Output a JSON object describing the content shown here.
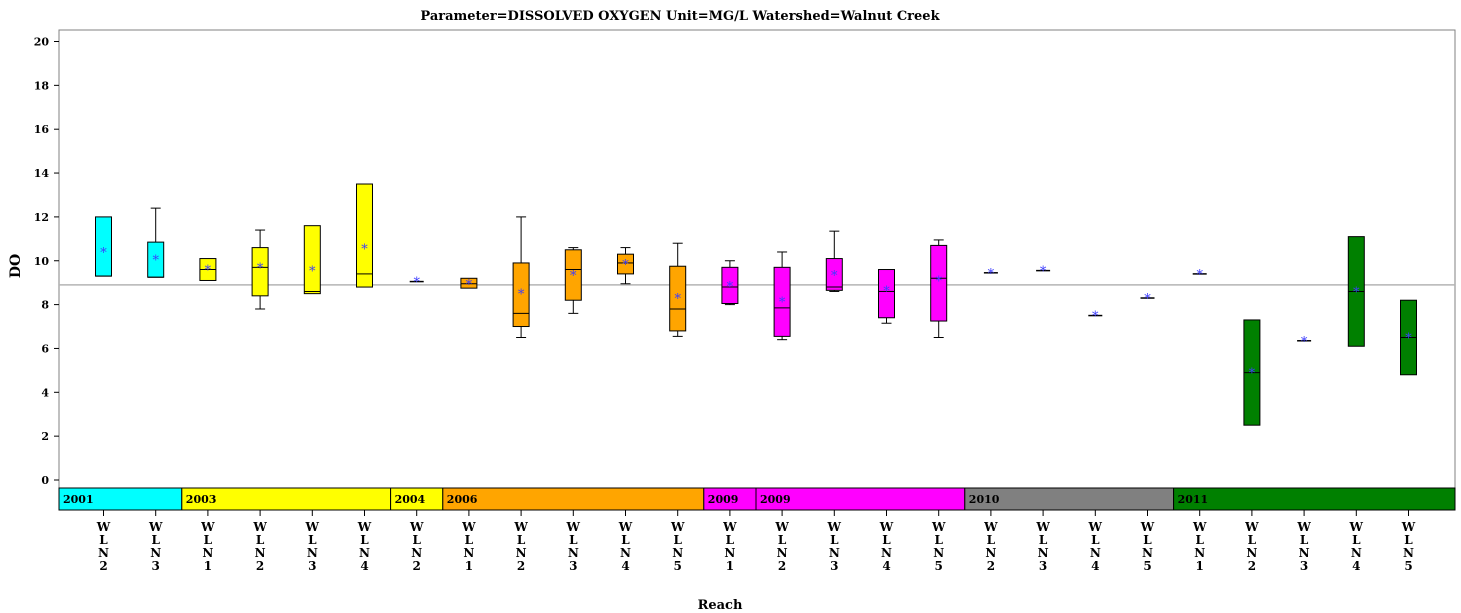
{
  "chart_data": {
    "type": "box",
    "title": "Parameter=DISSOLVED  OXYGEN  Unit=MG/L  Watershed=Walnut  Creek",
    "xlabel": "Reach",
    "ylabel": "DO",
    "ylim": [
      0,
      20
    ],
    "yticks": [
      0,
      2,
      4,
      6,
      8,
      10,
      12,
      14,
      16,
      18,
      20
    ],
    "reference_line": 8.9,
    "grid": false,
    "year_groups": [
      {
        "label": "2001",
        "first": 0,
        "last": 1,
        "color": "#00ffff"
      },
      {
        "label": "2003",
        "first": 2,
        "last": 5,
        "color": "#ffff00"
      },
      {
        "label": "2004",
        "first": 6,
        "last": 6,
        "color": "#ffff00"
      },
      {
        "label": "2006",
        "first": 7,
        "last": 11,
        "color": "#ffa500"
      },
      {
        "label": "2009",
        "first": 12,
        "last": 12,
        "color": "#ff00ff"
      },
      {
        "label": "2009",
        "first": 13,
        "last": 16,
        "color": "#ff00ff"
      },
      {
        "label": "2010",
        "first": 17,
        "last": 20,
        "color": "#808080"
      },
      {
        "label": "2011",
        "first": 21,
        "last": 25,
        "color": "#008000"
      }
    ],
    "boxes": [
      {
        "reach": "WLN2",
        "q1": 9.3,
        "median": 9.3,
        "q3": 12.0,
        "min": 9.3,
        "max": 12.0,
        "mean": 10.4
      },
      {
        "reach": "WLN3",
        "q1": 9.25,
        "median": 9.25,
        "q3": 10.85,
        "min": 9.25,
        "max": 12.4,
        "mean": 10.05
      },
      {
        "reach": "WLN1",
        "q1": 9.1,
        "median": 9.6,
        "q3": 10.1,
        "min": 9.1,
        "max": 10.1,
        "mean": 9.6
      },
      {
        "reach": "WLN2",
        "q1": 8.4,
        "median": 9.7,
        "q3": 10.6,
        "min": 7.8,
        "max": 11.4,
        "mean": 9.7
      },
      {
        "reach": "WLN3",
        "q1": 8.5,
        "median": 8.6,
        "q3": 11.6,
        "min": 8.5,
        "max": 11.6,
        "mean": 9.55
      },
      {
        "reach": "WLN4",
        "q1": 8.8,
        "median": 9.4,
        "q3": 13.5,
        "min": 8.8,
        "max": 13.5,
        "mean": 10.55
      },
      {
        "reach": "WLN2",
        "q1": 9.05,
        "median": 9.05,
        "q3": 9.05,
        "min": 9.05,
        "max": 9.05,
        "mean": 9.05
      },
      {
        "reach": "WLN1",
        "q1": 8.75,
        "median": 8.95,
        "q3": 9.2,
        "min": 8.75,
        "max": 9.2,
        "mean": 8.95
      },
      {
        "reach": "WLN2",
        "q1": 7.0,
        "median": 7.6,
        "q3": 9.9,
        "min": 6.5,
        "max": 12.0,
        "mean": 8.5
      },
      {
        "reach": "WLN3",
        "q1": 8.2,
        "median": 9.6,
        "q3": 10.5,
        "min": 7.6,
        "max": 10.6,
        "mean": 9.35
      },
      {
        "reach": "WLN4",
        "q1": 9.4,
        "median": 9.9,
        "q3": 10.3,
        "min": 8.95,
        "max": 10.6,
        "mean": 9.85
      },
      {
        "reach": "WLN5",
        "q1": 6.8,
        "median": 7.8,
        "q3": 9.75,
        "min": 6.55,
        "max": 10.8,
        "mean": 8.3
      },
      {
        "reach": "WLN1",
        "q1": 8.05,
        "median": 8.8,
        "q3": 9.7,
        "min": 8.0,
        "max": 10.0,
        "mean": 8.85
      },
      {
        "reach": "WLN2",
        "q1": 6.55,
        "median": 7.85,
        "q3": 9.7,
        "min": 6.4,
        "max": 10.4,
        "mean": 8.15
      },
      {
        "reach": "WLN3",
        "q1": 8.65,
        "median": 8.8,
        "q3": 10.1,
        "min": 8.6,
        "max": 11.35,
        "mean": 9.35
      },
      {
        "reach": "WLN4",
        "q1": 7.4,
        "median": 8.6,
        "q3": 9.6,
        "min": 7.15,
        "max": 9.6,
        "mean": 8.65
      },
      {
        "reach": "WLN5",
        "q1": 7.25,
        "median": 9.2,
        "q3": 10.7,
        "min": 6.5,
        "max": 10.95,
        "mean": 9.1
      },
      {
        "reach": "WLN2",
        "q1": 9.45,
        "median": 9.45,
        "q3": 9.45,
        "min": 9.45,
        "max": 9.45,
        "mean": 9.45
      },
      {
        "reach": "WLN3",
        "q1": 9.55,
        "median": 9.55,
        "q3": 9.55,
        "min": 9.55,
        "max": 9.55,
        "mean": 9.55
      },
      {
        "reach": "WLN4",
        "q1": 7.5,
        "median": 7.5,
        "q3": 7.5,
        "min": 7.5,
        "max": 7.5,
        "mean": 7.5
      },
      {
        "reach": "WLN5",
        "q1": 8.3,
        "median": 8.3,
        "q3": 8.3,
        "min": 8.3,
        "max": 8.3,
        "mean": 8.3
      },
      {
        "reach": "WLN1",
        "q1": 9.4,
        "median": 9.4,
        "q3": 9.4,
        "min": 9.4,
        "max": 9.4,
        "mean": 9.4
      },
      {
        "reach": "WLN2",
        "q1": 2.5,
        "median": 4.9,
        "q3": 7.3,
        "min": 2.5,
        "max": 7.3,
        "mean": 4.9
      },
      {
        "reach": "WLN3",
        "q1": 6.35,
        "median": 6.35,
        "q3": 6.35,
        "min": 6.35,
        "max": 6.35,
        "mean": 6.35
      },
      {
        "reach": "WLN4",
        "q1": 6.1,
        "median": 8.6,
        "q3": 11.1,
        "min": 6.1,
        "max": 11.1,
        "mean": 8.6
      },
      {
        "reach": "WLN5",
        "q1": 4.8,
        "median": 6.5,
        "q3": 8.2,
        "min": 4.8,
        "max": 8.2,
        "mean": 6.5
      }
    ]
  }
}
